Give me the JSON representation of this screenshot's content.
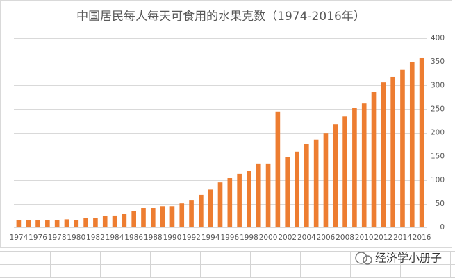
{
  "chart_data": {
    "type": "bar",
    "title": "中国居民每人每天可食用的水果克数（1974-2016年）",
    "categories": [
      "1974",
      null,
      "1976",
      null,
      "1978",
      null,
      "1980",
      null,
      "1982",
      null,
      "1984",
      null,
      "1986",
      null,
      "1988",
      null,
      "1990",
      null,
      "1992",
      null,
      "1994",
      null,
      "1996",
      null,
      "1998",
      null,
      "2000",
      null,
      "2002",
      null,
      "2004",
      null,
      "2006",
      null,
      "2008",
      null,
      "2010",
      null,
      "2012",
      null,
      "2014",
      null,
      "2016"
    ],
    "values": [
      15,
      15,
      15,
      15,
      16,
      17,
      16,
      20,
      20,
      24,
      25,
      28,
      34,
      41,
      41,
      45,
      45,
      51,
      57,
      69,
      80,
      95,
      104,
      113,
      120,
      135,
      135,
      245,
      148,
      160,
      177,
      185,
      199,
      218,
      234,
      252,
      262,
      287,
      306,
      318,
      333,
      350,
      359
    ],
    "color": "#ed7d31",
    "ylim": [
      0,
      400
    ],
    "yticks": [
      0,
      50,
      100,
      150,
      200,
      250,
      300,
      350,
      400
    ],
    "grid": true
  },
  "watermark": "经济学小册子"
}
